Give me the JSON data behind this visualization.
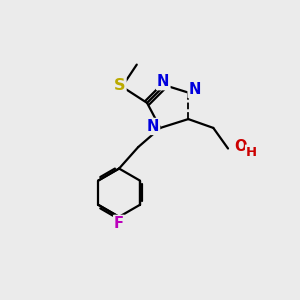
{
  "background_color": "#ebebeb",
  "bond_color": "#000000",
  "atom_colors": {
    "N": "#0000dd",
    "S": "#bbaa00",
    "O": "#cc0000",
    "F": "#bb00bb",
    "C": "#000000",
    "H": "#cc0000"
  },
  "figsize": [
    3.0,
    3.0
  ],
  "dpi": 100,
  "lw": 1.6,
  "fs": 10.5
}
